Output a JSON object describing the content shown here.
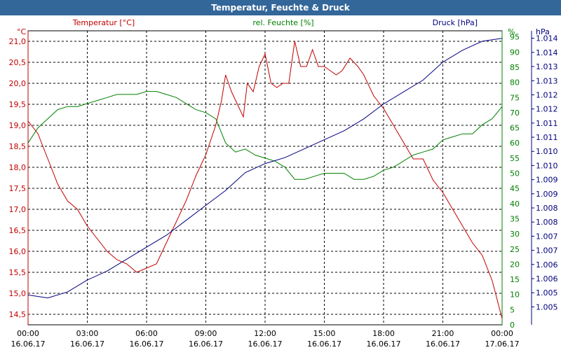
{
  "chart_data": {
    "type": "line",
    "title": "Temperatur, Feuchte & Druck",
    "axes": {
      "temperature": {
        "unit": "°C",
        "label": "Temperatur [°C]",
        "ylim": [
          14.25,
          21.25
        ],
        "ticks": [
          "14,5",
          "15,0",
          "15,5",
          "16,0",
          "16,5",
          "17,0",
          "17,5",
          "18,0",
          "18,5",
          "19,0",
          "19,5",
          "20,0",
          "20,5",
          "21,0"
        ]
      },
      "humidity": {
        "unit": "%",
        "label": "rel. Feuchte [%]",
        "ylim": [
          0,
          97
        ],
        "ticks": [
          "0",
          "5",
          "10",
          "15",
          "20",
          "25",
          "30",
          "35",
          "40",
          "45",
          "50",
          "55",
          "60",
          "65",
          "70",
          "75",
          "80",
          "85",
          "90",
          "95"
        ]
      },
      "pressure": {
        "unit": "hPa",
        "label": "Druck [hPa]",
        "ylim": [
          1004.4,
          1014.25
        ],
        "ticks": [
          "1.005",
          "1.005",
          "1.006",
          "1.006",
          "1.007",
          "1.007",
          "1.008",
          "1.008",
          "1.009",
          "1.009",
          "1.010",
          "1.010",
          "1.011",
          "1.011",
          "1.012",
          "1.012",
          "1.013",
          "1.013",
          "1.014",
          "1.014"
        ]
      }
    },
    "x_ticks": [
      {
        "time": "00:00",
        "date": "16.06.17"
      },
      {
        "time": "03:00",
        "date": "16.06.17"
      },
      {
        "time": "06:00",
        "date": "16.06.17"
      },
      {
        "time": "09:00",
        "date": "16.06.17"
      },
      {
        "time": "12:00",
        "date": "16.06.17"
      },
      {
        "time": "15:00",
        "date": "16.06.17"
      },
      {
        "time": "18:00",
        "date": "16.06.17"
      },
      {
        "time": "21:00",
        "date": "16.06.17"
      },
      {
        "time": "00:00",
        "date": "17.06.17"
      }
    ],
    "xlim_hours": [
      0,
      24
    ],
    "series": [
      {
        "name": "Temperatur [°C]",
        "axis": "temperature",
        "color": "#c00000",
        "points": [
          [
            0,
            19.1
          ],
          [
            0.5,
            18.8
          ],
          [
            1,
            18.2
          ],
          [
            1.5,
            17.6
          ],
          [
            2,
            17.2
          ],
          [
            2.5,
            17.0
          ],
          [
            3,
            16.6
          ],
          [
            3.5,
            16.3
          ],
          [
            4,
            16.0
          ],
          [
            4.5,
            15.8
          ],
          [
            5,
            15.7
          ],
          [
            5.5,
            15.5
          ],
          [
            6,
            15.6
          ],
          [
            6.5,
            15.7
          ],
          [
            7,
            16.2
          ],
          [
            7.5,
            16.7
          ],
          [
            8,
            17.2
          ],
          [
            8.5,
            17.8
          ],
          [
            9,
            18.3
          ],
          [
            9.5,
            19.0
          ],
          [
            9.8,
            19.6
          ],
          [
            10,
            20.2
          ],
          [
            10.3,
            19.8
          ],
          [
            10.6,
            19.5
          ],
          [
            10.9,
            19.2
          ],
          [
            11.1,
            20.0
          ],
          [
            11.4,
            19.8
          ],
          [
            11.7,
            20.4
          ],
          [
            12,
            20.7
          ],
          [
            12.3,
            20.0
          ],
          [
            12.6,
            19.9
          ],
          [
            12.9,
            20.0
          ],
          [
            13.2,
            20.0
          ],
          [
            13.5,
            21.0
          ],
          [
            13.8,
            20.4
          ],
          [
            14.1,
            20.4
          ],
          [
            14.4,
            20.8
          ],
          [
            14.7,
            20.4
          ],
          [
            15,
            20.4
          ],
          [
            15.3,
            20.3
          ],
          [
            15.6,
            20.2
          ],
          [
            15.9,
            20.3
          ],
          [
            16.3,
            20.6
          ],
          [
            16.7,
            20.4
          ],
          [
            17,
            20.2
          ],
          [
            17.5,
            19.7
          ],
          [
            18,
            19.4
          ],
          [
            18.5,
            19.0
          ],
          [
            19,
            18.6
          ],
          [
            19.5,
            18.2
          ],
          [
            20,
            18.2
          ],
          [
            20.5,
            17.7
          ],
          [
            21,
            17.4
          ],
          [
            21.5,
            17.0
          ],
          [
            22,
            16.6
          ],
          [
            22.5,
            16.2
          ],
          [
            23,
            15.9
          ],
          [
            23.5,
            15.3
          ],
          [
            24,
            14.4
          ]
        ]
      },
      {
        "name": "rel. Feuchte [%]",
        "axis": "humidity",
        "color": "#008000",
        "points": [
          [
            0,
            60
          ],
          [
            0.5,
            65
          ],
          [
            1,
            68
          ],
          [
            1.5,
            71
          ],
          [
            2,
            72
          ],
          [
            2.5,
            72
          ],
          [
            3,
            73
          ],
          [
            3.5,
            74
          ],
          [
            4,
            75
          ],
          [
            4.5,
            76
          ],
          [
            5,
            76
          ],
          [
            5.5,
            76
          ],
          [
            6,
            77
          ],
          [
            6.5,
            77
          ],
          [
            7,
            76
          ],
          [
            7.5,
            75
          ],
          [
            8,
            73
          ],
          [
            8.5,
            71
          ],
          [
            9,
            70
          ],
          [
            9.5,
            68
          ],
          [
            10,
            60
          ],
          [
            10.5,
            57
          ],
          [
            11,
            58
          ],
          [
            11.5,
            56
          ],
          [
            12,
            55
          ],
          [
            12.5,
            54
          ],
          [
            13,
            52
          ],
          [
            13.5,
            48
          ],
          [
            14,
            48
          ],
          [
            14.5,
            49
          ],
          [
            15,
            50
          ],
          [
            15.5,
            50
          ],
          [
            16,
            50
          ],
          [
            16.5,
            48
          ],
          [
            17,
            48
          ],
          [
            17.5,
            49
          ],
          [
            18,
            51
          ],
          [
            18.5,
            52
          ],
          [
            19,
            54
          ],
          [
            19.5,
            56
          ],
          [
            20,
            57
          ],
          [
            20.5,
            58
          ],
          [
            21,
            61
          ],
          [
            21.5,
            62
          ],
          [
            22,
            63
          ],
          [
            22.5,
            63
          ],
          [
            23,
            66
          ],
          [
            23.5,
            68
          ],
          [
            24,
            72
          ]
        ]
      },
      {
        "name": "Druck [hPa]",
        "axis": "pressure",
        "color": "#00007f",
        "points": [
          [
            0,
            1005.4
          ],
          [
            1,
            1005.3
          ],
          [
            2,
            1005.5
          ],
          [
            3,
            1005.9
          ],
          [
            4,
            1006.2
          ],
          [
            5,
            1006.6
          ],
          [
            6,
            1007.0
          ],
          [
            7,
            1007.4
          ],
          [
            8,
            1007.9
          ],
          [
            9,
            1008.4
          ],
          [
            10,
            1008.9
          ],
          [
            11,
            1009.5
          ],
          [
            12,
            1009.8
          ],
          [
            13,
            1010.0
          ],
          [
            14,
            1010.3
          ],
          [
            15,
            1010.6
          ],
          [
            16,
            1010.9
          ],
          [
            17,
            1011.3
          ],
          [
            18,
            1011.8
          ],
          [
            19,
            1012.2
          ],
          [
            20,
            1012.6
          ],
          [
            21,
            1013.2
          ],
          [
            22,
            1013.6
          ],
          [
            23,
            1013.9
          ],
          [
            24,
            1014.0
          ]
        ]
      }
    ]
  },
  "colors": {
    "titlebar": "#336699",
    "temperature": "#c00000",
    "humidity": "#008000",
    "pressure": "#00007f",
    "grid": "#000000"
  }
}
